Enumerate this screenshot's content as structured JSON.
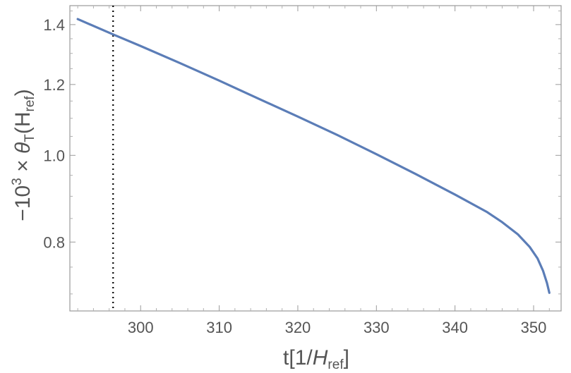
{
  "chart_data": {
    "type": "line",
    "xlabel": {
      "pre": "t[1/",
      "main": "H",
      "sub": "ref",
      "post": "]"
    },
    "ylabel": {
      "pre": "−10",
      "sup": "3",
      "mid": " × ",
      "theta": "θ",
      "sub": "T",
      "post_open": "(H",
      "post_sub": "ref",
      "post_close": ")"
    },
    "xlim": [
      291.0,
      353.5
    ],
    "ylim": [
      0.67,
      1.47
    ],
    "yscale": "log",
    "xticks": [
      300,
      310,
      320,
      330,
      340,
      350
    ],
    "xtick_labels": [
      "300",
      "310",
      "320",
      "330",
      "340",
      "350"
    ],
    "yticks": [
      0.8,
      1.0,
      1.2,
      1.4
    ],
    "ytick_labels": [
      "0.8",
      "1.0",
      "1.2",
      "1.4"
    ],
    "vline_x": 296.5,
    "series": [
      {
        "color": "#5b7db7",
        "x": [
          292.0,
          296.5,
          300,
          305,
          310,
          315,
          320,
          325,
          330,
          335,
          340,
          344,
          346,
          348,
          349.5,
          350.5,
          351.2,
          351.7,
          352.0
        ],
        "y": [
          1.42,
          1.365,
          1.325,
          1.268,
          1.212,
          1.157,
          1.105,
          1.054,
          1.003,
          0.953,
          0.904,
          0.865,
          0.842,
          0.816,
          0.79,
          0.767,
          0.743,
          0.72,
          0.702
        ]
      }
    ],
    "grid": false
  }
}
